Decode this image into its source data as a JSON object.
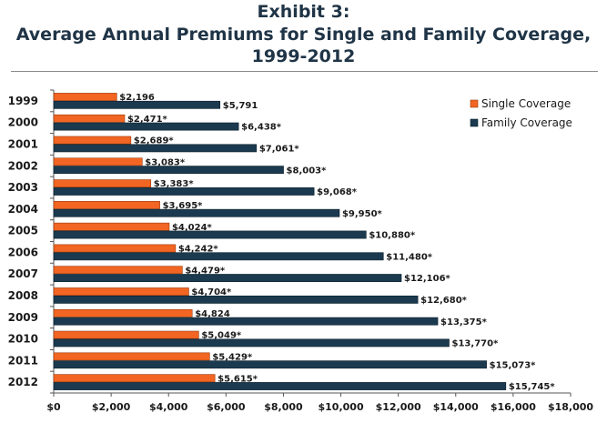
{
  "chart_data": {
    "type": "bar",
    "orientation": "horizontal",
    "title": "Exhibit 3:",
    "subtitle": "Average Annual Premiums for Single and Family Coverage,",
    "subtitle2": "1999-2012",
    "categories": [
      "1999",
      "2000",
      "2001",
      "2002",
      "2003",
      "2004",
      "2005",
      "2006",
      "2007",
      "2008",
      "2009",
      "2010",
      "2011",
      "2012"
    ],
    "series": [
      {
        "name": "Single Coverage",
        "color": "#f26522",
        "values": [
          2196,
          2471,
          2689,
          3083,
          3383,
          3695,
          4024,
          4242,
          4479,
          4704,
          4824,
          5049,
          5429,
          5615
        ],
        "labels": [
          "$2,196",
          "$2,471*",
          "$2,689*",
          "$3,083*",
          "$3,383*",
          "$3,695*",
          "$4,024*",
          "$4,242*",
          "$4,479*",
          "$4,704*",
          "$4,824",
          "$5,049*",
          "$5,429*",
          "$5,615*"
        ]
      },
      {
        "name": "Family Coverage",
        "color": "#1b3a4f",
        "values": [
          5791,
          6438,
          7061,
          8003,
          9068,
          9950,
          10880,
          11480,
          12106,
          12680,
          13375,
          13770,
          15073,
          15745
        ],
        "labels": [
          "$5,791",
          "$6,438*",
          "$7,061*",
          "$8,003*",
          "$9,068*",
          "$9,950*",
          "$10,880*",
          "$11,480*",
          "$12,106*",
          "$12,680*",
          "$13,375*",
          "$13,770*",
          "$15,073*",
          "$15,745*"
        ]
      }
    ],
    "xlim": [
      0,
      18000
    ],
    "xticks": [
      0,
      2000,
      4000,
      6000,
      8000,
      10000,
      12000,
      14000,
      16000,
      18000
    ],
    "xtick_labels": [
      "$0",
      "$2,000",
      "$4,000",
      "$6,000",
      "$8,000",
      "$10,000",
      "$12,000",
      "$14,000",
      "$16,000",
      "$18,000"
    ],
    "legend_position": "top-right",
    "grid": false
  }
}
